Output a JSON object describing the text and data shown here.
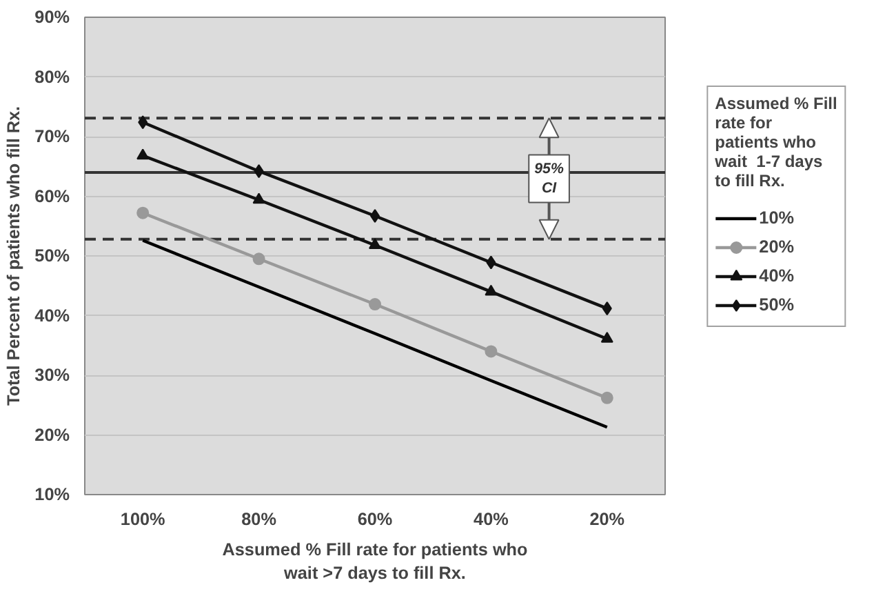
{
  "chart_data": {
    "type": "line",
    "xlabel": "Assumed % Fill rate for patients who wait >7 days to fill Rx.",
    "ylabel": "Total Percent of patients who fill Rx.",
    "legend_title": "Assumed % Fill rate for patients who wait  1-7 days to fill Rx.",
    "categories": [
      "100%",
      "80%",
      "60%",
      "40%",
      "20%"
    ],
    "series": [
      {
        "name": "10%",
        "color": "#000000",
        "marker": "none",
        "values": [
          52.6,
          44.8,
          37.0,
          29.1,
          21.3
        ]
      },
      {
        "name": "20%",
        "color": "#999999",
        "marker": "circle",
        "values": [
          57.2,
          49.5,
          41.9,
          34.0,
          26.2
        ]
      },
      {
        "name": "40%",
        "color": "#111111",
        "marker": "triangle",
        "values": [
          66.8,
          59.4,
          51.8,
          44.0,
          36.1
        ]
      },
      {
        "name": "50%",
        "color": "#111111",
        "marker": "diamond",
        "values": [
          72.4,
          64.2,
          56.7,
          48.9,
          41.2
        ]
      }
    ],
    "ylim": [
      10,
      90
    ],
    "yticks": [
      {
        "value": 10,
        "label": "10%"
      },
      {
        "value": 20,
        "label": "20%"
      },
      {
        "value": 30,
        "label": "30%"
      },
      {
        "value": 40,
        "label": "40%"
      },
      {
        "value": 50,
        "label": "50%"
      },
      {
        "value": 60,
        "label": "60%"
      },
      {
        "value": 70,
        "label": "70%"
      },
      {
        "value": 80,
        "label": "80%"
      },
      {
        "value": 90,
        "label": "90%"
      }
    ],
    "ref_lines": [
      {
        "axis": "y",
        "value": 73.1,
        "color": "#333333",
        "line_style": "dashed"
      },
      {
        "axis": "y",
        "value": 64,
        "color": "#333333",
        "line_style": "solid"
      },
      {
        "axis": "y",
        "value": 52.8,
        "color": "#333333",
        "line_style": "dashed"
      }
    ],
    "annotations": [
      {
        "text": "95%\nCI",
        "y": 62.95
      }
    ],
    "grid": "y",
    "legend": "right",
    "line_style": "solid"
  }
}
